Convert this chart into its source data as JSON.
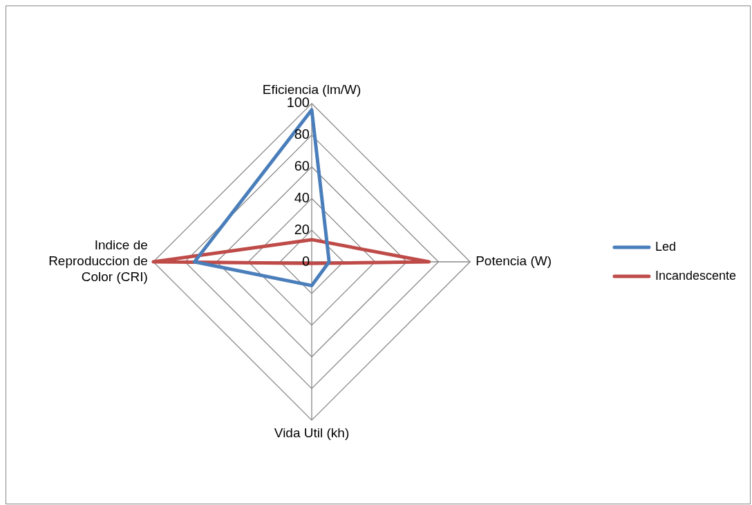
{
  "chart_data": {
    "type": "radar",
    "categories": [
      "Eficiencia (lm/W)",
      "Potencia (W)",
      "Vida Util (kh)",
      "Indice de Reproduccion de Color (CRI)"
    ],
    "series": [
      {
        "name": "Led",
        "color": "#4a7ebb",
        "values": [
          96,
          11,
          15,
          74
        ]
      },
      {
        "name": "Incandescente",
        "color": "#be4b48",
        "values": [
          14,
          74,
          1,
          100
        ]
      }
    ],
    "ylim": [
      0,
      100
    ],
    "yticks": [
      0,
      20,
      40,
      60,
      80,
      100
    ],
    "grid": true,
    "legend": "right",
    "marker": "none"
  }
}
